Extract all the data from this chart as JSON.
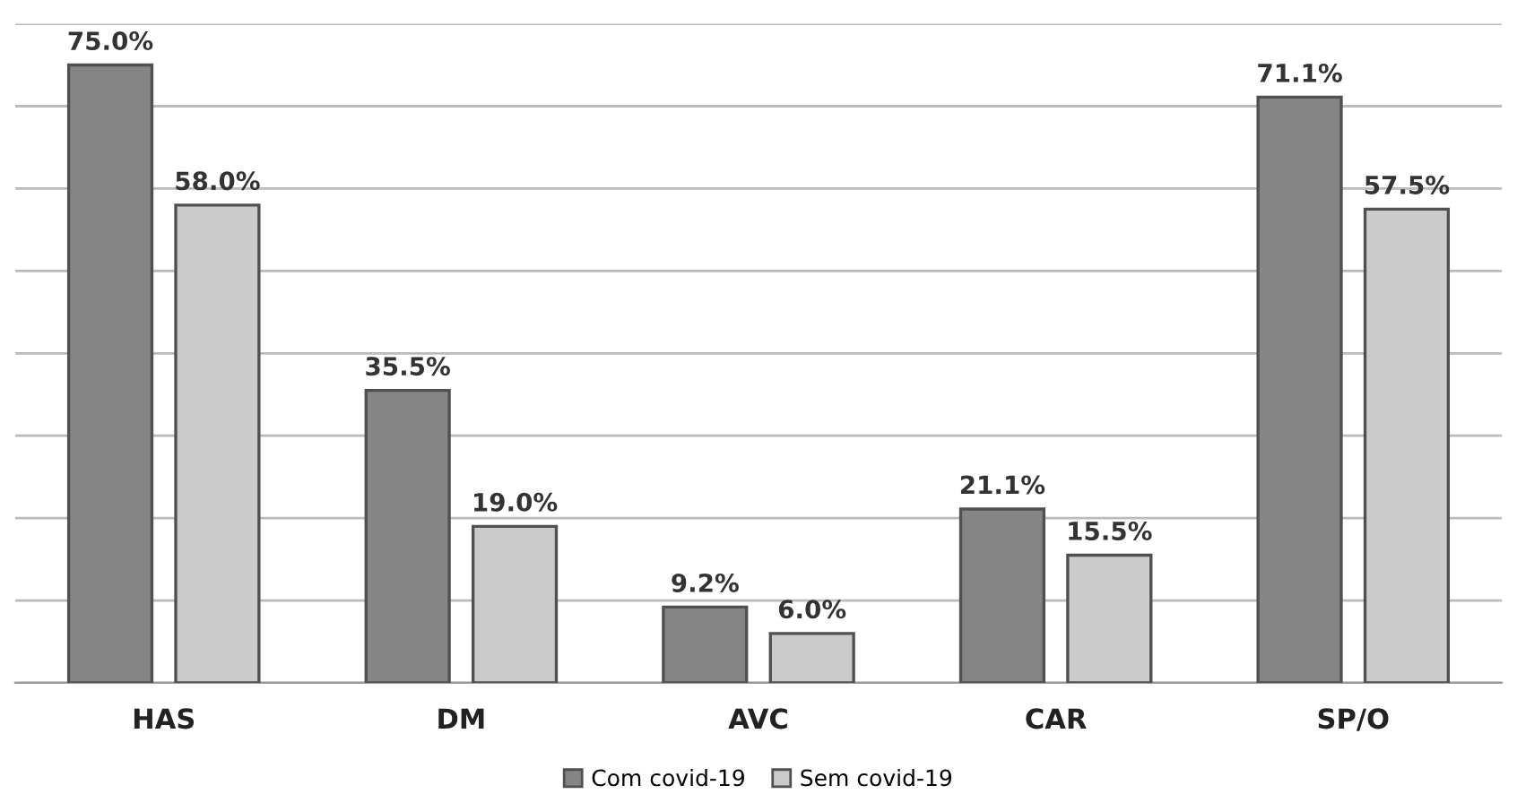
{
  "chart_data": {
    "type": "bar",
    "categories": [
      "HAS",
      "DM",
      "AVC",
      "CAR",
      "SP/O"
    ],
    "series": [
      {
        "name": "Com covid-19",
        "color": "#858585",
        "values": [
          75.0,
          35.5,
          9.2,
          21.1,
          71.1
        ],
        "value_labels": [
          "75.0%",
          "35.5%",
          "9.2%",
          "21.1%",
          "71.1%"
        ]
      },
      {
        "name": "Sem covid-19",
        "color": "#cbcbcb",
        "values": [
          58.0,
          19.0,
          6.0,
          15.5,
          57.5
        ],
        "value_labels": [
          "58.0%",
          "19.0%",
          "6.0%",
          "15.5%",
          "57.5%"
        ]
      }
    ],
    "ylim": [
      0,
      80
    ],
    "yticks": [
      {
        "value": 0,
        "label": null
      },
      {
        "value": 10,
        "label": null
      },
      {
        "value": 20,
        "label": null
      },
      {
        "value": 30,
        "label": null
      },
      {
        "value": 40,
        "label": null
      },
      {
        "value": 50,
        "label": null
      },
      {
        "value": 60,
        "label": null
      },
      {
        "value": 70,
        "label": null
      },
      {
        "value": 80,
        "label": null
      }
    ],
    "grid": "y",
    "legend": "bottom",
    "tick_labels": "x"
  }
}
